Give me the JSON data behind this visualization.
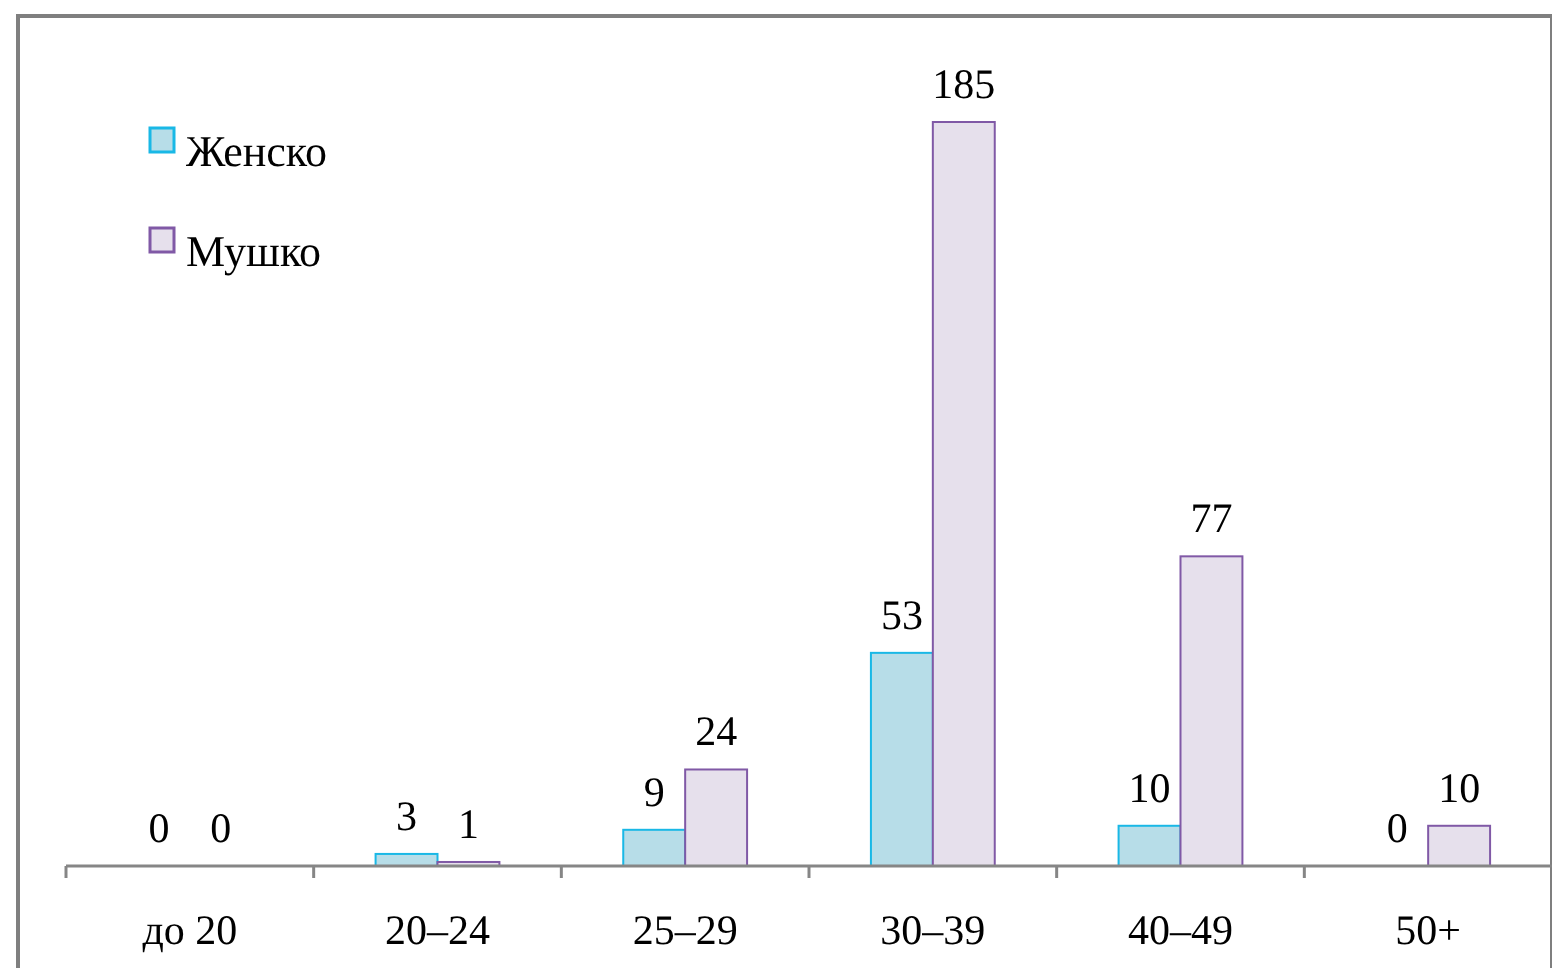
{
  "chart_data": {
    "type": "bar",
    "categories": [
      "до 20",
      "20–24",
      "25–29",
      "30–39",
      "40–49",
      "50+"
    ],
    "series": [
      {
        "name": "Женско",
        "color": "#b7dde8",
        "values": [
          0,
          3,
          9,
          53,
          10,
          0
        ]
      },
      {
        "name": "Мушко",
        "color": "#e6e0ec",
        "values": [
          0,
          1,
          24,
          185,
          77,
          10
        ]
      }
    ],
    "data_labels": true,
    "legend": "top left"
  }
}
